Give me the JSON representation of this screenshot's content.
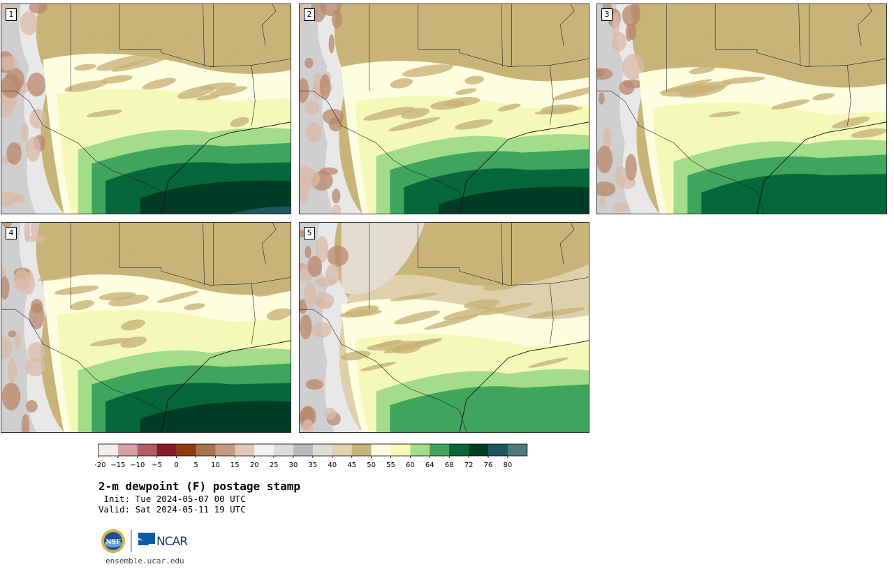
{
  "panels": [
    {
      "label": "1",
      "moisture": 1.0
    },
    {
      "label": "2",
      "moisture": 0.85
    },
    {
      "label": "3",
      "moisture": 0.72
    },
    {
      "label": "4",
      "moisture": 0.95
    },
    {
      "label": "5",
      "moisture": 0.45
    }
  ],
  "colorbar": {
    "colors": [
      "#f5eceb",
      "#d6a0a5",
      "#b45c65",
      "#8b1a28",
      "#8b3d0e",
      "#a8724e",
      "#c59b7e",
      "#e2c7b6",
      "#f2f2f2",
      "#dcdcdc",
      "#b9b9b9",
      "#e0ddd2",
      "#e0d3ad",
      "#c8b378",
      "#fdfddf",
      "#f5f9b5",
      "#a4dd8a",
      "#3fa45c",
      "#06673a",
      "#003c25",
      "#1d5560",
      "#4d7b7c"
    ],
    "ticks": [
      "−20",
      "−15",
      "−10",
      "−5",
      "0",
      "5",
      "10",
      "15",
      "20",
      "25",
      "30",
      "35",
      "40",
      "45",
      "50",
      "55",
      "60",
      "64",
      "68",
      "72",
      "76",
      "80"
    ]
  },
  "title": "2-m dewpoint (F) postage stamp",
  "init": " Init: Tue 2024-05-07 00 UTC",
  "valid": "Valid: Sat 2024-05-11 19 UTC",
  "logos": {
    "nsf": "NSF",
    "ncar": "NCAR"
  },
  "site": "ensemble.ucar.edu"
}
